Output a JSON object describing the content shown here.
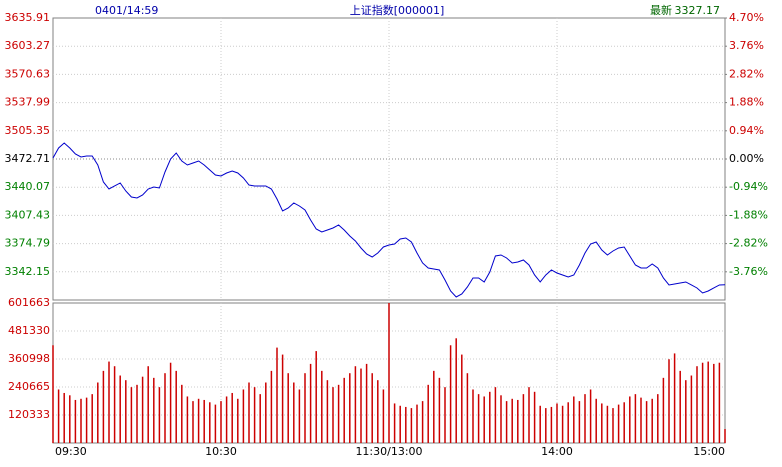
{
  "timestamp": "0401/14:59",
  "latest_label": "最新",
  "latest": 3327.17,
  "chart_data": [
    {
      "type": "line",
      "title": "上证指数[000001]",
      "color": "#0000cc",
      "values": [
        3473.87,
        3485.45,
        3491.23,
        3485.45,
        3478.5,
        3475.03,
        3476.19,
        3476.19,
        3465.77,
        3446.1,
        3437.99,
        3441.47,
        3444.94,
        3435.68,
        3428.74,
        3427.58,
        3431.05,
        3437.99,
        3440.31,
        3439.15,
        3457.67,
        3472.72,
        3479.66,
        3470.4,
        3465.77,
        3468.09,
        3470.4,
        3465.77,
        3459.99,
        3454.2,
        3453.04,
        3456.51,
        3458.83,
        3456.51,
        3450.73,
        3442.62,
        3441.47,
        3441.47,
        3441.47,
        3437.99,
        3426.42,
        3412.53,
        3416.0,
        3421.79,
        3418.32,
        3413.69,
        3402.12,
        3391.7,
        3388.23,
        3390.54,
        3392.86,
        3396.33,
        3390.54,
        3383.6,
        3377.81,
        3369.71,
        3362.76,
        3359.29,
        3363.92,
        3370.87,
        3373.18,
        3374.34,
        3380.12,
        3381.28,
        3376.65,
        3363.92,
        3352.35,
        3346.56,
        3345.4,
        3344.25,
        3332.67,
        3319.94,
        3313.0,
        3316.47,
        3324.57,
        3334.99,
        3334.99,
        3330.36,
        3341.93,
        3360.45,
        3361.61,
        3358.13,
        3352.35,
        3353.5,
        3355.82,
        3350.03,
        3338.46,
        3330.36,
        3338.46,
        3344.25,
        3340.77,
        3338.46,
        3336.14,
        3338.46,
        3350.03,
        3363.92,
        3374.34,
        3376.65,
        3367.39,
        3361.61,
        3366.24,
        3369.71,
        3370.87,
        3360.45,
        3350.03,
        3346.56,
        3346.56,
        3351.19,
        3346.56,
        3334.99,
        3326.88,
        3328.04,
        3329.2,
        3330.36,
        3326.88,
        3323.41,
        3317.62,
        3319.94,
        3323.41,
        3326.88,
        3327.17
      ],
      "ylim": [
        3309.51,
        3635.91
      ],
      "yticks": [
        3635.91,
        3603.27,
        3570.63,
        3537.99,
        3505.35,
        3472.71,
        3440.07,
        3407.43,
        3374.79,
        3342.15
      ],
      "y2lim": [
        -4.7,
        4.7
      ],
      "y2ticks": [
        {
          "value": 4.7,
          "label": "4.70%"
        },
        {
          "value": 3.76,
          "label": "3.76%"
        },
        {
          "value": 2.82,
          "label": "2.82%"
        },
        {
          "value": 1.88,
          "label": "1.88%"
        },
        {
          "value": 0.94,
          "label": "0.94%"
        },
        {
          "value": 0,
          "label": "0.00%"
        },
        {
          "value": -0.94,
          "label": "-0.94%"
        },
        {
          "value": -1.88,
          "label": "-1.88%"
        },
        {
          "value": -2.82,
          "label": "-2.82%"
        },
        {
          "value": -3.76,
          "label": "-3.76%"
        }
      ]
    },
    {
      "type": "bar",
      "color": "#cc0000",
      "categories": [
        "09:30",
        null,
        null,
        null,
        null,
        null,
        null,
        null,
        null,
        null,
        null,
        null,
        null,
        null,
        null,
        null,
        null,
        null,
        null,
        null,
        null,
        null,
        null,
        null,
        null,
        null,
        null,
        null,
        null,
        null,
        "10:30",
        null,
        null,
        null,
        null,
        null,
        null,
        null,
        null,
        null,
        null,
        null,
        null,
        null,
        null,
        null,
        null,
        null,
        null,
        null,
        null,
        null,
        null,
        null,
        null,
        null,
        null,
        null,
        null,
        null,
        "11:30/13:00",
        null,
        null,
        null,
        null,
        null,
        null,
        null,
        null,
        null,
        null,
        null,
        null,
        null,
        null,
        null,
        null,
        null,
        null,
        null,
        null,
        null,
        null,
        null,
        null,
        null,
        null,
        null,
        null,
        null,
        "14:00",
        null,
        null,
        null,
        null,
        null,
        null,
        null,
        null,
        null,
        null,
        null,
        null,
        null,
        null,
        null,
        null,
        null,
        null,
        null,
        null,
        null,
        null,
        null,
        null,
        null,
        null,
        null,
        null,
        null,
        "15:00"
      ],
      "values": [
        420000,
        230000,
        215000,
        205000,
        185000,
        190000,
        195000,
        210000,
        260000,
        310000,
        350000,
        330000,
        290000,
        270000,
        240000,
        250000,
        285000,
        330000,
        280000,
        240000,
        300000,
        345000,
        310000,
        250000,
        200000,
        180000,
        190000,
        185000,
        175000,
        165000,
        180000,
        200000,
        215000,
        190000,
        230000,
        260000,
        240000,
        210000,
        260000,
        310000,
        410000,
        380000,
        300000,
        260000,
        230000,
        300000,
        340000,
        395000,
        310000,
        270000,
        240000,
        250000,
        280000,
        300000,
        330000,
        320000,
        340000,
        300000,
        270000,
        230000,
        601663,
        170000,
        160000,
        155000,
        150000,
        165000,
        180000,
        250000,
        310000,
        280000,
        240000,
        420000,
        450000,
        380000,
        300000,
        230000,
        210000,
        200000,
        220000,
        240000,
        205000,
        180000,
        190000,
        185000,
        210000,
        240000,
        220000,
        160000,
        150000,
        155000,
        170000,
        160000,
        175000,
        200000,
        180000,
        210000,
        230000,
        190000,
        170000,
        160000,
        150000,
        165000,
        175000,
        200000,
        210000,
        195000,
        180000,
        190000,
        210000,
        280000,
        360000,
        385000,
        310000,
        270000,
        290000,
        330000,
        345000,
        350000,
        340000,
        345000,
        60000
      ],
      "ylim": [
        0,
        601663
      ],
      "yticks": [
        601663,
        481330,
        360998,
        240665,
        120333
      ]
    }
  ]
}
